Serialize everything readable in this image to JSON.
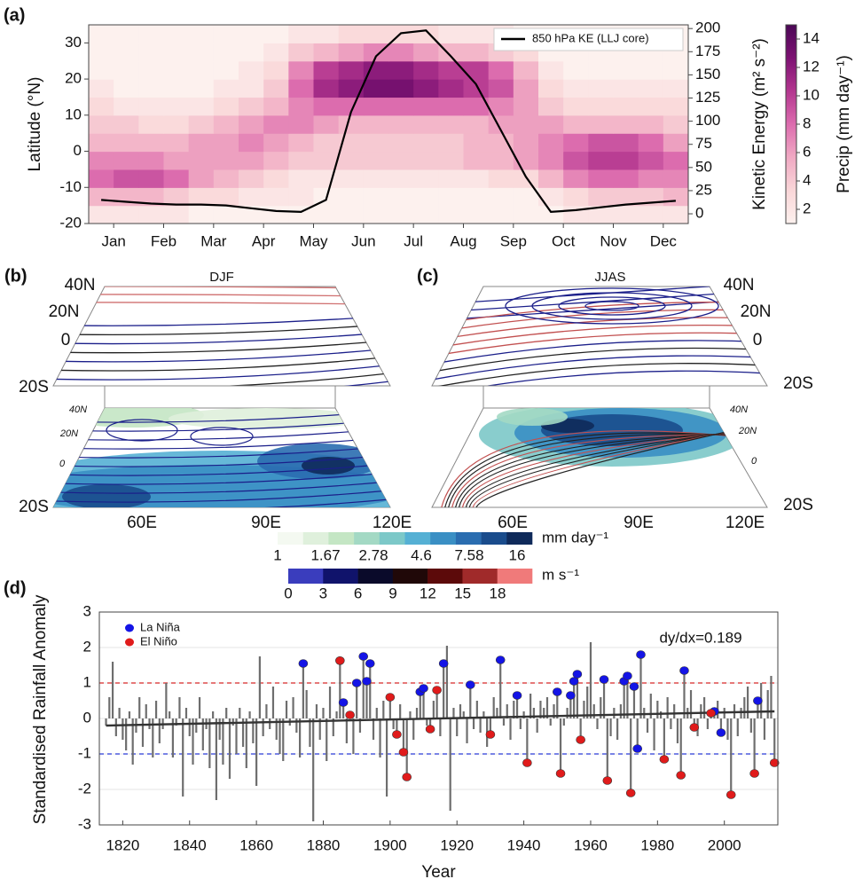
{
  "chart_data": [
    {
      "type": "heatmap",
      "panel_label": "(a)",
      "x": [
        0.25,
        0.75,
        1.25,
        1.75,
        2.25,
        2.75,
        3.25,
        3.75,
        4.25,
        4.75,
        5.25,
        5.75,
        6.25,
        6.75,
        7.25,
        7.75,
        8.25,
        8.75,
        9.25,
        9.75,
        10.25,
        10.75,
        11.25,
        11.75
      ],
      "y": [
        -17.5,
        -12.5,
        -7.5,
        -2.5,
        2.5,
        7.5,
        12.5,
        17.5,
        22.5,
        27.5,
        32.5
      ],
      "z": [
        [
          2,
          2,
          2,
          2,
          1,
          1,
          1,
          1,
          1,
          1,
          1,
          1,
          1,
          1,
          1,
          1,
          1,
          1,
          1,
          2,
          2,
          2,
          2,
          2
        ],
        [
          5,
          5,
          5,
          4,
          3,
          3,
          2,
          2,
          2,
          1,
          1,
          1,
          1,
          1,
          1,
          1,
          1,
          1,
          2,
          3,
          4,
          4,
          4,
          5
        ],
        [
          8,
          9,
          9,
          8,
          6,
          5,
          4,
          3,
          2,
          2,
          2,
          2,
          2,
          2,
          2,
          2,
          3,
          3,
          5,
          7,
          8,
          8,
          7,
          7
        ],
        [
          7,
          7,
          7,
          6,
          6,
          6,
          6,
          5,
          4,
          4,
          4,
          4,
          4,
          4,
          4,
          5,
          5,
          6,
          7,
          9,
          10,
          10,
          9,
          8
        ],
        [
          5,
          5,
          5,
          5,
          6,
          6,
          7,
          6,
          5,
          4,
          4,
          4,
          4,
          4,
          4,
          5,
          5,
          6,
          7,
          8,
          9,
          9,
          8,
          6
        ],
        [
          4,
          4,
          3,
          3,
          4,
          5,
          6,
          7,
          7,
          6,
          5,
          5,
          5,
          5,
          5,
          5,
          6,
          6,
          6,
          5,
          5,
          5,
          5,
          4
        ],
        [
          3,
          2,
          2,
          2,
          2,
          3,
          4,
          5,
          7,
          8,
          8,
          8,
          8,
          8,
          8,
          8,
          7,
          6,
          4,
          3,
          3,
          3,
          3,
          3
        ],
        [
          2,
          1,
          1,
          1,
          1,
          2,
          2,
          4,
          8,
          11,
          12,
          13,
          13,
          12,
          11,
          10,
          9,
          6,
          3,
          2,
          2,
          2,
          2,
          2
        ],
        [
          1,
          1,
          1,
          1,
          1,
          1,
          2,
          3,
          7,
          10,
          11,
          12,
          12,
          11,
          10,
          10,
          8,
          5,
          2,
          1,
          1,
          1,
          1,
          1
        ],
        [
          1,
          1,
          1,
          1,
          1,
          1,
          1,
          2,
          4,
          5,
          6,
          7,
          7,
          6,
          5,
          5,
          4,
          3,
          1,
          1,
          1,
          1,
          1,
          1
        ],
        [
          1,
          1,
          1,
          1,
          1,
          1,
          1,
          1,
          2,
          2,
          3,
          3,
          3,
          3,
          2,
          2,
          2,
          1,
          1,
          1,
          1,
          1,
          1,
          1
        ]
      ],
      "zlim": [
        1,
        15
      ],
      "zticks": [
        2,
        4,
        6,
        8,
        10,
        12,
        14
      ],
      "colormap": [
        "#fdf1ee",
        "#f9d6d8",
        "#f0a9c3",
        "#dc6cae",
        "#b3368f",
        "#7d1273",
        "#4b0855"
      ],
      "colorbar_label": "Precip (mm day⁻¹)",
      "xlim": [
        0,
        12
      ],
      "xticks": [
        {
          "value": 0.5,
          "label": "Jan"
        },
        {
          "value": 1.5,
          "label": "Feb"
        },
        {
          "value": 2.5,
          "label": "Mar"
        },
        {
          "value": 3.5,
          "label": "Apr"
        },
        {
          "value": 4.5,
          "label": "May"
        },
        {
          "value": 5.5,
          "label": "Jun"
        },
        {
          "value": 6.5,
          "label": "Jul"
        },
        {
          "value": 7.5,
          "label": "Aug"
        },
        {
          "value": 8.5,
          "label": "Sep"
        },
        {
          "value": 9.5,
          "label": "Oct"
        },
        {
          "value": 10.5,
          "label": "Nov"
        },
        {
          "value": 11.5,
          "label": "Dec"
        }
      ],
      "ylim": [
        -20,
        35
      ],
      "yticks": [
        -20,
        -10,
        0,
        10,
        20,
        30
      ],
      "ylabel": "Latitude (°N)",
      "y2lim": [
        -10.5,
        204
      ],
      "y2ticks": [
        0,
        25,
        50,
        75,
        100,
        125,
        150,
        175,
        200
      ],
      "y2label": "Kinetic Energy (m² s⁻²)",
      "series": [
        {
          "name": "850 hPa KE (LLJ core)",
          "color": "#000000",
          "axis": "y2",
          "values": [
            15,
            13,
            11,
            10,
            10,
            9,
            6,
            3,
            2,
            15,
            110,
            170,
            195,
            198,
            170,
            140,
            90,
            40,
            2,
            4,
            7,
            10,
            12,
            14
          ]
        }
      ],
      "legend": "upper right"
    },
    {
      "type": "bar",
      "panel_label": "(d)",
      "x": [
        1815,
        1816,
        1817,
        1818,
        1819,
        1820,
        1821,
        1822,
        1823,
        1824,
        1825,
        1826,
        1827,
        1828,
        1829,
        1830,
        1831,
        1832,
        1833,
        1834,
        1835,
        1836,
        1837,
        1838,
        1839,
        1840,
        1841,
        1842,
        1843,
        1844,
        1845,
        1846,
        1847,
        1848,
        1849,
        1850,
        1851,
        1852,
        1853,
        1854,
        1855,
        1856,
        1857,
        1858,
        1859,
        1860,
        1861,
        1862,
        1863,
        1864,
        1865,
        1866,
        1867,
        1868,
        1869,
        1870,
        1871,
        1872,
        1873,
        1874,
        1875,
        1876,
        1877,
        1878,
        1879,
        1880,
        1881,
        1882,
        1883,
        1884,
        1885,
        1886,
        1887,
        1888,
        1889,
        1890,
        1891,
        1892,
        1893,
        1894,
        1895,
        1896,
        1897,
        1898,
        1899,
        1900,
        1901,
        1902,
        1903,
        1904,
        1905,
        1906,
        1907,
        1908,
        1909,
        1910,
        1911,
        1912,
        1913,
        1914,
        1915,
        1916,
        1917,
        1918,
        1919,
        1920,
        1921,
        1922,
        1923,
        1924,
        1925,
        1926,
        1927,
        1928,
        1929,
        1930,
        1931,
        1932,
        1933,
        1934,
        1935,
        1936,
        1937,
        1938,
        1939,
        1940,
        1941,
        1942,
        1943,
        1944,
        1945,
        1946,
        1947,
        1948,
        1949,
        1950,
        1951,
        1952,
        1953,
        1954,
        1955,
        1956,
        1957,
        1958,
        1959,
        1960,
        1961,
        1962,
        1963,
        1964,
        1965,
        1966,
        1967,
        1968,
        1969,
        1970,
        1971,
        1972,
        1973,
        1974,
        1975,
        1976,
        1977,
        1978,
        1979,
        1980,
        1981,
        1982,
        1983,
        1984,
        1985,
        1986,
        1987,
        1988,
        1989,
        1990,
        1991,
        1992,
        1993,
        1994,
        1995,
        1996,
        1997,
        1998,
        1999,
        2000,
        2001,
        2002,
        2003,
        2004,
        2005,
        2006,
        2007,
        2008,
        2009,
        2010,
        2011,
        2012,
        2013,
        2014,
        2015
      ],
      "values": [
        -0.2,
        0.6,
        1.6,
        -0.5,
        0.3,
        -0.6,
        -0.9,
        0.2,
        -1.3,
        -0.4,
        0.6,
        -0.8,
        0.4,
        -0.3,
        -1.1,
        0.5,
        -0.7,
        -0.3,
        1.0,
        0.2,
        -1.1,
        -0.2,
        0.6,
        -2.2,
        0.3,
        -0.5,
        -1.3,
        -0.4,
        0.6,
        -0.9,
        -0.3,
        -1.4,
        0.2,
        -2.3,
        -0.6,
        -1.3,
        0.3,
        -1.7,
        -0.2,
        -1.0,
        0.3,
        -0.8,
        -1.4,
        0.2,
        -0.7,
        -1.9,
        1.75,
        -0.5,
        0.4,
        -0.3,
        0.9,
        -0.6,
        -1.0,
        -1.2,
        0.5,
        -0.2,
        0.6,
        -0.4,
        -1.1,
        1.55,
        0.8,
        -0.8,
        -2.9,
        0.4,
        -0.6,
        0.3,
        -1.2,
        0.9,
        -0.5,
        0.2,
        1.63,
        0.45,
        -0.7,
        0.1,
        -1.0,
        1.0,
        -0.4,
        1.75,
        1.05,
        1.55,
        -0.6,
        0.3,
        -1.1,
        0.5,
        -2.2,
        0.6,
        -0.3,
        -0.45,
        0.4,
        -0.95,
        -1.65,
        0.2,
        -0.6,
        0.3,
        0.75,
        0.85,
        -0.2,
        -0.3,
        0.5,
        0.8,
        -0.5,
        1.55,
        2.05,
        -2.6,
        0.3,
        -0.5,
        0.4,
        0.2,
        -0.7,
        0.95,
        -0.3,
        0.5,
        -0.4,
        0.2,
        -0.8,
        -0.45,
        0.6,
        0.3,
        1.65,
        -0.2,
        0.4,
        -0.6,
        0.5,
        0.65,
        -0.3,
        0.2,
        -1.25,
        0.7,
        0.3,
        -0.4,
        0.5,
        0.3,
        0.6,
        -0.2,
        0.4,
        0.75,
        -1.55,
        -0.2,
        0.3,
        0.65,
        1.05,
        1.25,
        -0.6,
        0.5,
        0.9,
        2.15,
        0.4,
        -0.3,
        0.6,
        1.1,
        -1.75,
        -0.5,
        0.3,
        -0.6,
        0.4,
        1.05,
        1.2,
        -2.1,
        0.9,
        -0.85,
        1.8,
        0.3,
        -0.4,
        0.7,
        -0.9,
        0.5,
        0.2,
        -1.15,
        0.6,
        -0.3,
        0.4,
        -0.7,
        -1.6,
        1.35,
        0.3,
        0.8,
        -0.25,
        -0.5,
        0.4,
        0.6,
        -0.3,
        0.15,
        0.2,
        0.5,
        -0.4,
        0.3,
        -0.6,
        -2.15,
        0.4,
        -0.5,
        0.3,
        0.6,
        0.9,
        -0.4,
        -1.55,
        0.5,
        1.0,
        -0.6,
        0.8,
        1.2,
        -1.25
      ],
      "color": "#6e6e6e",
      "xlim": [
        1813,
        2016
      ],
      "xticks": [
        1820,
        1840,
        1860,
        1880,
        1900,
        1920,
        1940,
        1960,
        1980,
        2000
      ],
      "ylim": [
        -3,
        3
      ],
      "yticks": [
        -3,
        -2,
        -1,
        0,
        1,
        2,
        3
      ],
      "xlabel": "Year",
      "ylabel": "Standardised Rainfall Anomaly",
      "grid": true,
      "series": [
        {
          "name": "La Niña",
          "color": "#1414e6",
          "x": [
            1874,
            1886,
            1890,
            1892,
            1893,
            1894,
            1909,
            1910,
            1916,
            1924,
            1933,
            1938,
            1950,
            1954,
            1955,
            1956,
            1964,
            1970,
            1971,
            1973,
            1974,
            1975,
            1988,
            1997,
            1999,
            2010
          ],
          "values": [
            1.55,
            0.45,
            1.0,
            1.75,
            1.05,
            1.55,
            0.75,
            0.85,
            1.55,
            0.95,
            1.65,
            0.65,
            0.75,
            0.65,
            1.05,
            1.25,
            1.1,
            1.05,
            1.2,
            0.9,
            -0.85,
            1.8,
            1.35,
            0.2,
            -0.4,
            0.5
          ]
        },
        {
          "name": "El Niño",
          "color": "#e01b1b",
          "x": [
            1885,
            1888,
            1900,
            1902,
            1904,
            1905,
            1912,
            1914,
            1930,
            1941,
            1951,
            1957,
            1965,
            1972,
            1982,
            1987,
            1991,
            1996,
            2002,
            2009,
            2015
          ],
          "values": [
            1.63,
            0.1,
            0.6,
            -0.45,
            -0.95,
            -1.65,
            -0.3,
            0.8,
            -0.45,
            -1.25,
            -1.55,
            -0.6,
            -1.75,
            -2.1,
            -1.15,
            -1.6,
            -0.25,
            0.15,
            -2.15,
            -1.55,
            -1.25
          ]
        }
      ],
      "trend": {
        "x": [
          1815,
          2015
        ],
        "values": [
          -0.2,
          0.2
        ],
        "color": "#333333"
      },
      "reference_lines": [
        {
          "value": 1,
          "color": "#d62728"
        },
        {
          "value": -1,
          "color": "#2b3bd6"
        }
      ],
      "annotation": "dy/dx=0.189",
      "legend": "upper left"
    }
  ],
  "maps": [
    {
      "label": "(b)",
      "title": "DJF",
      "upper_lat": [
        "40N",
        "20N",
        "0",
        "20S"
      ],
      "lower_lat": [
        "40N",
        "20N",
        "0"
      ],
      "bottom_lat": "20S",
      "lon": [
        "60E",
        "90E",
        "120E"
      ]
    },
    {
      "label": "(c)",
      "title": "JJAS",
      "upper_lat": [
        "40N",
        "20N",
        "0",
        "20S"
      ],
      "lower_lat": [
        "40N",
        "20N",
        "0"
      ],
      "bottom_lat": "20S",
      "lon": [
        "60E",
        "90E",
        "120E"
      ]
    }
  ],
  "colorbars": [
    {
      "unit": "mm day⁻¹",
      "ticks": [
        1,
        1.67,
        2.78,
        4.6,
        7.58,
        16
      ],
      "colors": [
        "#f4f9f1",
        "#dff0dc",
        "#c4e6c4",
        "#a3d9c4",
        "#7cc8c8",
        "#55b0d4",
        "#3a8fc4",
        "#2a6db0",
        "#1a4c8c",
        "#0f2a5a"
      ]
    },
    {
      "unit": "m s⁻¹",
      "ticks": [
        0,
        3,
        6,
        9,
        12,
        15,
        18
      ],
      "colors": [
        "#3a3dbd",
        "#10136b",
        "#0a0a2a",
        "#200808",
        "#5c0a0a",
        "#a02a2a",
        "#f07a7a"
      ]
    }
  ]
}
